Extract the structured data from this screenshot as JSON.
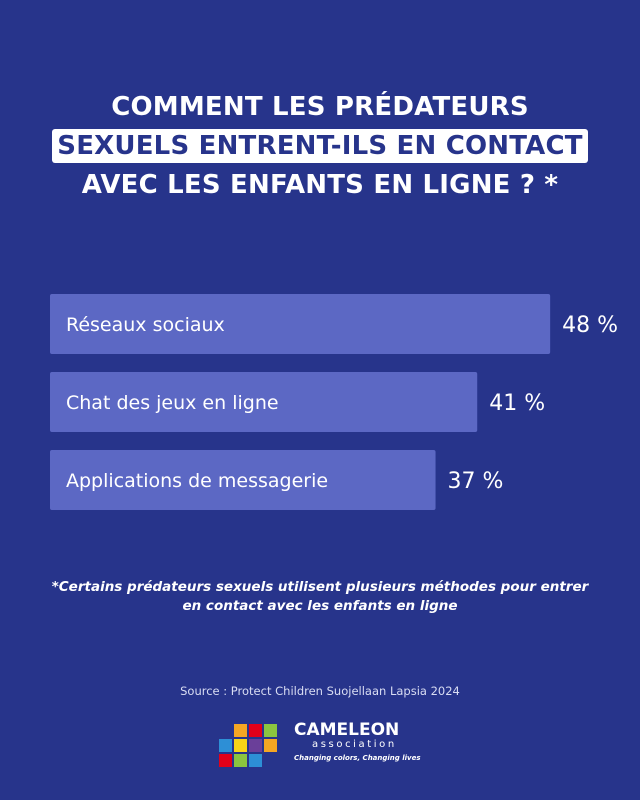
{
  "title": {
    "line1": "COMMENT LES PRÉDATEURS",
    "line2": "SEXUELS ENTRENT-ILS EN CONTACT",
    "line3": "AVEC LES ENFANTS EN LIGNE ? *"
  },
  "chart_data": {
    "type": "bar",
    "orientation": "horizontal",
    "categories": [
      "Réseaux sociaux",
      "Chat des jeux en ligne",
      "Applications de messagerie"
    ],
    "values": [
      48,
      41,
      37
    ],
    "value_labels": [
      "48 %",
      "41 %",
      "37 %"
    ],
    "unit": "%",
    "grid": false,
    "colors": {
      "bar": "#5c68c4",
      "background": "#27348b",
      "text": "#ffffff"
    }
  },
  "footnote": "*Certains prédateurs sexuels utilisent plusieurs méthodes pour entrer en contact avec les enfants en ligne",
  "source": "Source : Protect Children Suojellaan Lapsia 2024",
  "logo": {
    "name": "CAMELEON",
    "subtitle": "association",
    "tagline": "Changing colors, Changing lives",
    "square_colors": [
      "#f5a623",
      "#e2001a",
      "#8bc53f",
      "#2d8fd6",
      "#f7d417",
      "#6a3f99"
    ]
  }
}
